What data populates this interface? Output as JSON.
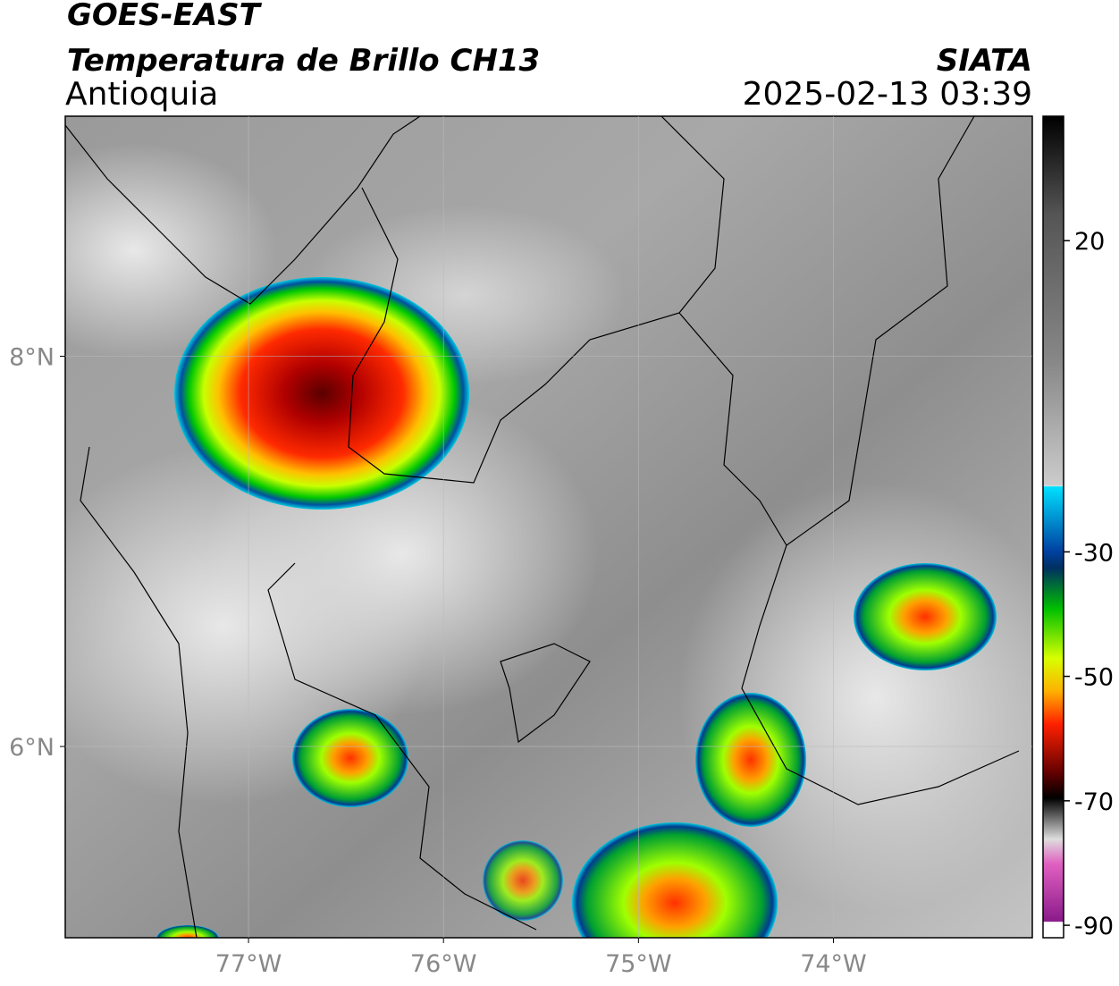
{
  "map": {
    "title": "GOES-EAST",
    "subtitle": "Temperatura de Brillo CH13",
    "region": "Antioquia",
    "source": "SIATA",
    "timestamp": "2025-02-13 03:39",
    "xlim": [
      -77.94,
      -72.98
    ],
    "ylim": [
      5.02,
      9.23
    ],
    "xticks": [
      {
        "value": -77,
        "label": "77°W"
      },
      {
        "value": -76,
        "label": "76°W"
      },
      {
        "value": -75,
        "label": "75°W"
      },
      {
        "value": -74,
        "label": "74°W"
      }
    ],
    "yticks": [
      {
        "value": 8,
        "label": "8°N"
      },
      {
        "value": 6,
        "label": "6°N"
      }
    ],
    "grid": true,
    "colorbar": {
      "lim": [
        -92,
        40
      ],
      "ticks": [
        20,
        -30,
        -50,
        -70,
        -90
      ]
    }
  }
}
